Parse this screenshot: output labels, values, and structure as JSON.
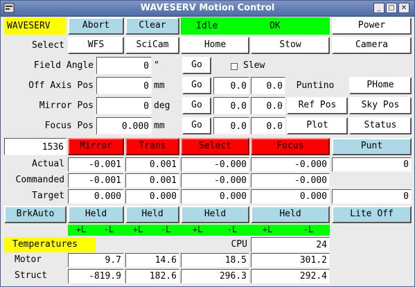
{
  "window": {
    "title": "WAVESERV Motion Control"
  },
  "status": {
    "app": "WAVESERV",
    "abort": "Abort",
    "clear": "Clear",
    "state": "Idle",
    "ok": "OK",
    "power": "Power"
  },
  "select": {
    "label": "Select",
    "wfs": "WFS",
    "scicam": "SciCam",
    "home": "Home",
    "stow": "Stow",
    "camera": "Camera"
  },
  "field_angle": {
    "label": "Field Angle",
    "value": "0",
    "unit": "\"",
    "go": "Go",
    "slew": "Slew"
  },
  "off_axis": {
    "label": "Off Axis Pos",
    "value": "0",
    "unit": "mm",
    "go": "Go",
    "a": "0.0",
    "b": "0.0",
    "c": "Puntino",
    "d": "PHome"
  },
  "mirror_pos": {
    "label": "Mirror Pos",
    "value": "0",
    "unit": "deg",
    "go": "Go",
    "a": "0.0",
    "b": "0.0",
    "c": "Ref Pos",
    "d": "Sky Pos"
  },
  "focus_pos": {
    "label": "Focus Pos",
    "value": "0.000",
    "unit": "mm",
    "go": "Go",
    "a": "0.0",
    "b": "0.0",
    "c": "Plot",
    "d": "Status"
  },
  "axes": {
    "count": "1536",
    "mirror": "Mirror",
    "trans": "Trans",
    "select": "Select",
    "focus": "Focus",
    "punt": "Punt"
  },
  "table": {
    "rows": [
      {
        "label": "Actual",
        "v": [
          "-0.001",
          "0.001",
          "-0.000",
          "-0.000",
          "0"
        ]
      },
      {
        "label": "Commanded",
        "v": [
          "-0.001",
          "0.001",
          "-0.000",
          "-0.000",
          ""
        ]
      },
      {
        "label": "Target",
        "v": [
          "0.000",
          "0.000",
          "0.000",
          "0.000",
          "0"
        ]
      }
    ]
  },
  "brakes": {
    "mode": "BrkAuto",
    "held": "Held",
    "lite": "Lite Off"
  },
  "limits": {
    "plus": "+L",
    "minus": "-L"
  },
  "temps": {
    "title": "Temperatures",
    "cpu_label": "CPU",
    "cpu": "24",
    "motor": {
      "label": "Motor",
      "v": [
        "9.7",
        "14.6",
        "18.5",
        "301.2"
      ]
    },
    "struct": {
      "label": "Struct",
      "v": [
        "-819.9",
        "182.6",
        "296.3",
        "292.4"
      ]
    }
  },
  "colors": {
    "yellow": "#ffff00",
    "green": "#00ff00",
    "red": "#ff0000",
    "blue": "#add8e6"
  }
}
